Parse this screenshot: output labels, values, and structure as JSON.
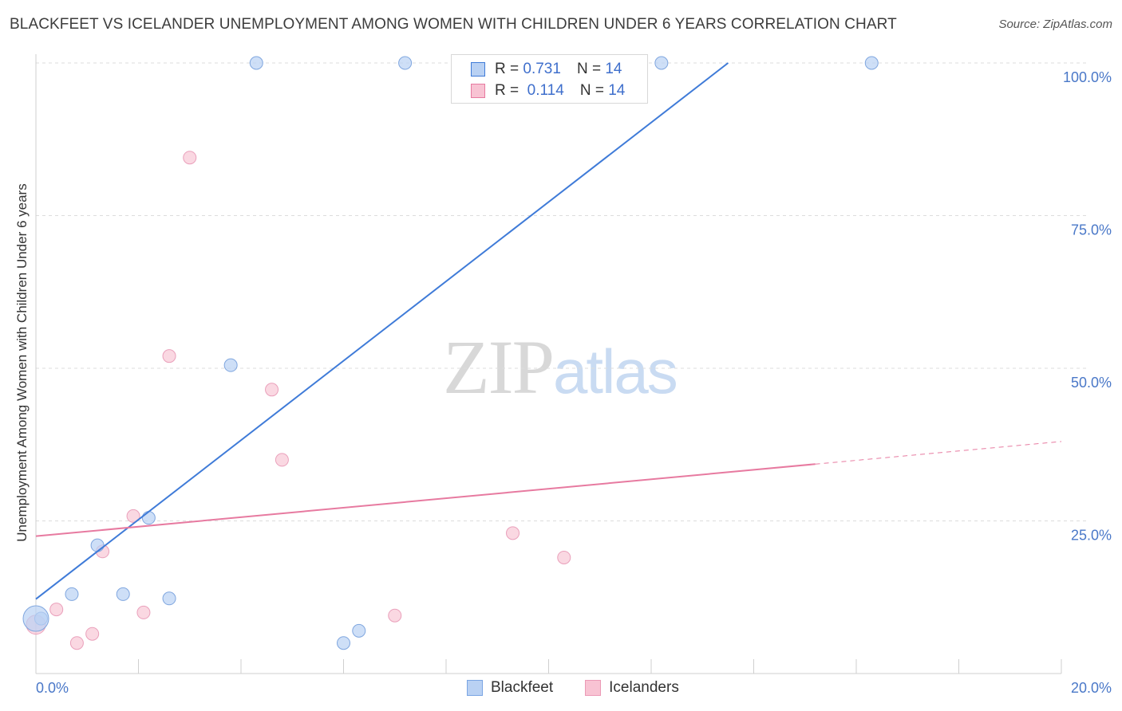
{
  "title": "BLACKFEET VS ICELANDER UNEMPLOYMENT AMONG WOMEN WITH CHILDREN UNDER 6 YEARS CORRELATION CHART",
  "source": "Source: ZipAtlas.com",
  "watermark": {
    "zip": "ZIP",
    "atlas": "atlas"
  },
  "legend_top": {
    "rows": [
      {
        "r_label": "R =",
        "r_value": "0.731",
        "n_label": "N =",
        "n_value": "14"
      },
      {
        "r_label": "R =",
        "r_value": "0.114",
        "n_label": "N =",
        "n_value": "14"
      }
    ]
  },
  "legend_bottom": {
    "series1": "Blackfeet",
    "series2": "Icelanders"
  },
  "chart_data": {
    "type": "scatter",
    "title": "BLACKFEET VS ICELANDER UNEMPLOYMENT AMONG WOMEN WITH CHILDREN UNDER 6 YEARS CORRELATION CHART",
    "xlabel": "",
    "ylabel": "Unemployment Among Women with Children Under 6 years",
    "xlim": [
      0,
      20
    ],
    "ylim": [
      0,
      100
    ],
    "x_tick_labels": [
      "0.0%",
      "20.0%"
    ],
    "y_tick_labels": [
      "25.0%",
      "50.0%",
      "75.0%",
      "100.0%"
    ],
    "y_ticks": [
      25,
      50,
      75,
      100
    ],
    "grid": true,
    "colors": {
      "blackfeet": "#3f7bd8",
      "icelanders": "#e77aa0",
      "blackfeet_fill": "#b9d1f3",
      "icelanders_fill": "#f8c3d3"
    },
    "series": [
      {
        "name": "Blackfeet",
        "points": [
          [
            0.1,
            9.0
          ],
          [
            0.7,
            13.0
          ],
          [
            1.2,
            21.0
          ],
          [
            1.7,
            13.0
          ],
          [
            2.2,
            25.5
          ],
          [
            2.6,
            12.3
          ],
          [
            3.8,
            50.5
          ],
          [
            4.3,
            100
          ],
          [
            6.0,
            5.0
          ],
          [
            6.3,
            7.0
          ],
          [
            7.2,
            100
          ],
          [
            12.2,
            100
          ],
          [
            16.3,
            100
          ],
          [
            0.0,
            9.0
          ]
        ],
        "trend": {
          "x0": 0,
          "y0": 12.2,
          "x1": 13.5,
          "y1": 100
        }
      },
      {
        "name": "Icelanders",
        "points": [
          [
            0.0,
            8.0
          ],
          [
            0.4,
            10.5
          ],
          [
            0.8,
            5.0
          ],
          [
            1.1,
            6.5
          ],
          [
            1.3,
            20.0
          ],
          [
            1.9,
            25.8
          ],
          [
            2.1,
            10.0
          ],
          [
            2.6,
            52.0
          ],
          [
            3.0,
            84.5
          ],
          [
            4.6,
            46.5
          ],
          [
            4.8,
            35.0
          ],
          [
            7.0,
            9.5
          ],
          [
            9.3,
            23.0
          ],
          [
            10.3,
            19.0
          ]
        ],
        "trend": {
          "x0": 0,
          "y0": 22.5,
          "x1": 15.2,
          "y1": 34.3,
          "dash_to_x": 20,
          "dash_to_y": 38.0
        }
      }
    ]
  }
}
